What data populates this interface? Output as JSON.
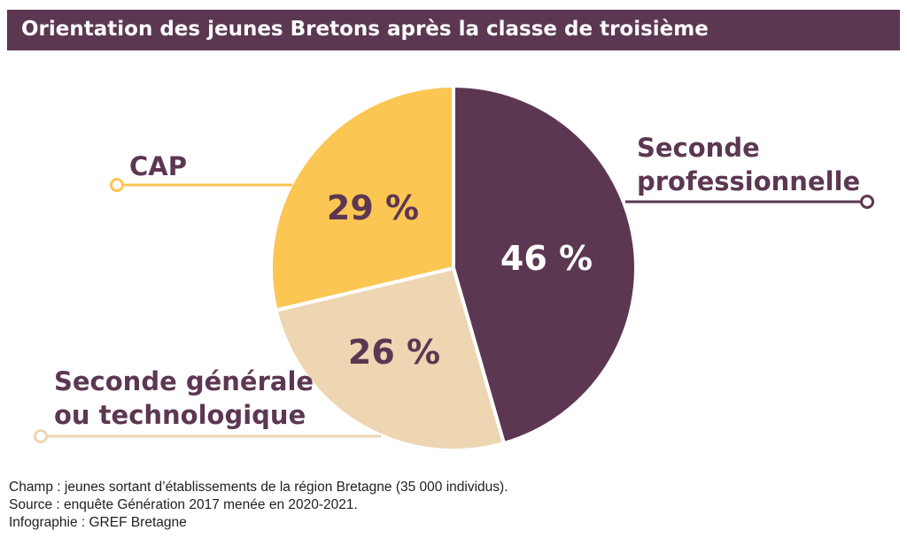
{
  "chart_data": {
    "type": "pie",
    "title": "Orientation des jeunes Bretons après la classe de troisième",
    "slices": [
      {
        "label_lines": [
          "Seconde",
          "professionnelle"
        ],
        "value": 46,
        "value_label": "46 %",
        "color": "#5c3752",
        "label_color": "#5c3752",
        "value_text_color": "#ffffff"
      },
      {
        "label_lines": [
          "Seconde générale",
          "ou technologique"
        ],
        "value": 26,
        "value_label": "26 %",
        "color": "#eed6b3",
        "label_color": "#5c3752",
        "value_text_color": "#5c3752"
      },
      {
        "label_lines": [
          "CAP"
        ],
        "value": 29,
        "value_label": "29 %",
        "color": "#fcc653",
        "label_color": "#5c3752",
        "value_text_color": "#5c3752"
      }
    ]
  },
  "colors": {
    "title_bar": "#5c3752",
    "leader_professionnelle": "#5c3752",
    "leader_generale": "#eed6b3",
    "leader_cap": "#fcc653"
  },
  "footer": {
    "champ": "Champ : jeunes sortant d’établissements de la région Bretagne (35 000 individus).",
    "source": "Source : enquête Génération 2017 menée en 2020-2021.",
    "infographie": "Infographie : GREF Bretagne"
  }
}
